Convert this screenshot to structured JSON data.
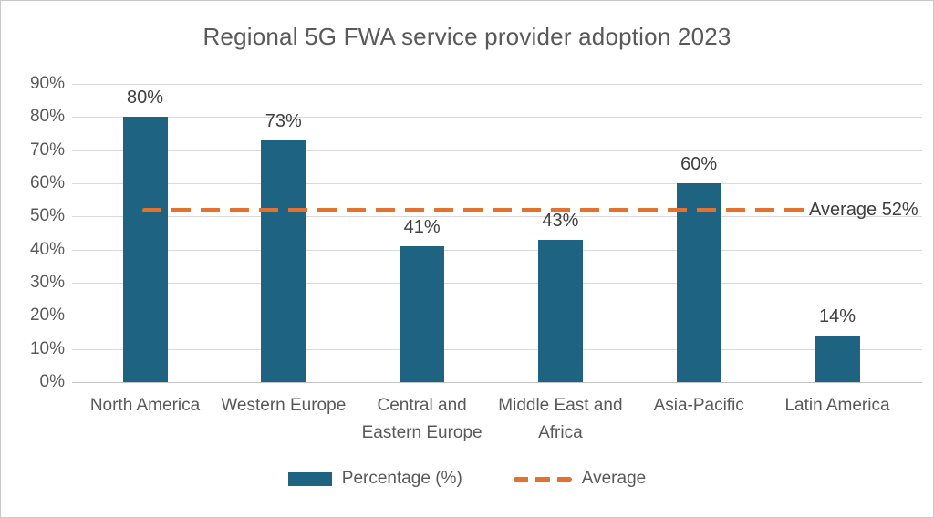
{
  "chart_data": {
    "type": "bar",
    "title": "Regional 5G FWA service provider adoption 2023",
    "categories": [
      "North America",
      "Western Europe",
      "Central and Eastern Europe",
      "Middle East and Africa",
      "Asia-Pacific",
      "Latin America"
    ],
    "category_lines": [
      [
        "North America"
      ],
      [
        "Western Europe"
      ],
      [
        "Central and",
        "Eastern Europe"
      ],
      [
        "Middle East and",
        "Africa"
      ],
      [
        "Asia-Pacific"
      ],
      [
        "Latin America"
      ]
    ],
    "values": [
      80,
      73,
      41,
      43,
      60,
      14
    ],
    "data_labels": [
      "80%",
      "73%",
      "41%",
      "43%",
      "60%",
      "14%"
    ],
    "average_line": {
      "value": 52,
      "label": "Average 52%"
    },
    "ylim": [
      0,
      90
    ],
    "ytick_step": 10,
    "ytick_labels": [
      "0%",
      "10%",
      "20%",
      "30%",
      "40%",
      "50%",
      "60%",
      "70%",
      "80%",
      "90%"
    ],
    "grid": true,
    "xlabel": "",
    "ylabel": "",
    "legend_position": "bottom",
    "legend": [
      {
        "label": "Percentage (%)",
        "type": "bar"
      },
      {
        "label": "Average",
        "type": "dashed-line"
      }
    ],
    "colors": {
      "bar": "#1e6482",
      "average": "#e2722d",
      "gridline": "#d9d9d9",
      "axis_text": "#595959",
      "value_text": "#3f3f3f",
      "title_text": "#595959"
    }
  }
}
